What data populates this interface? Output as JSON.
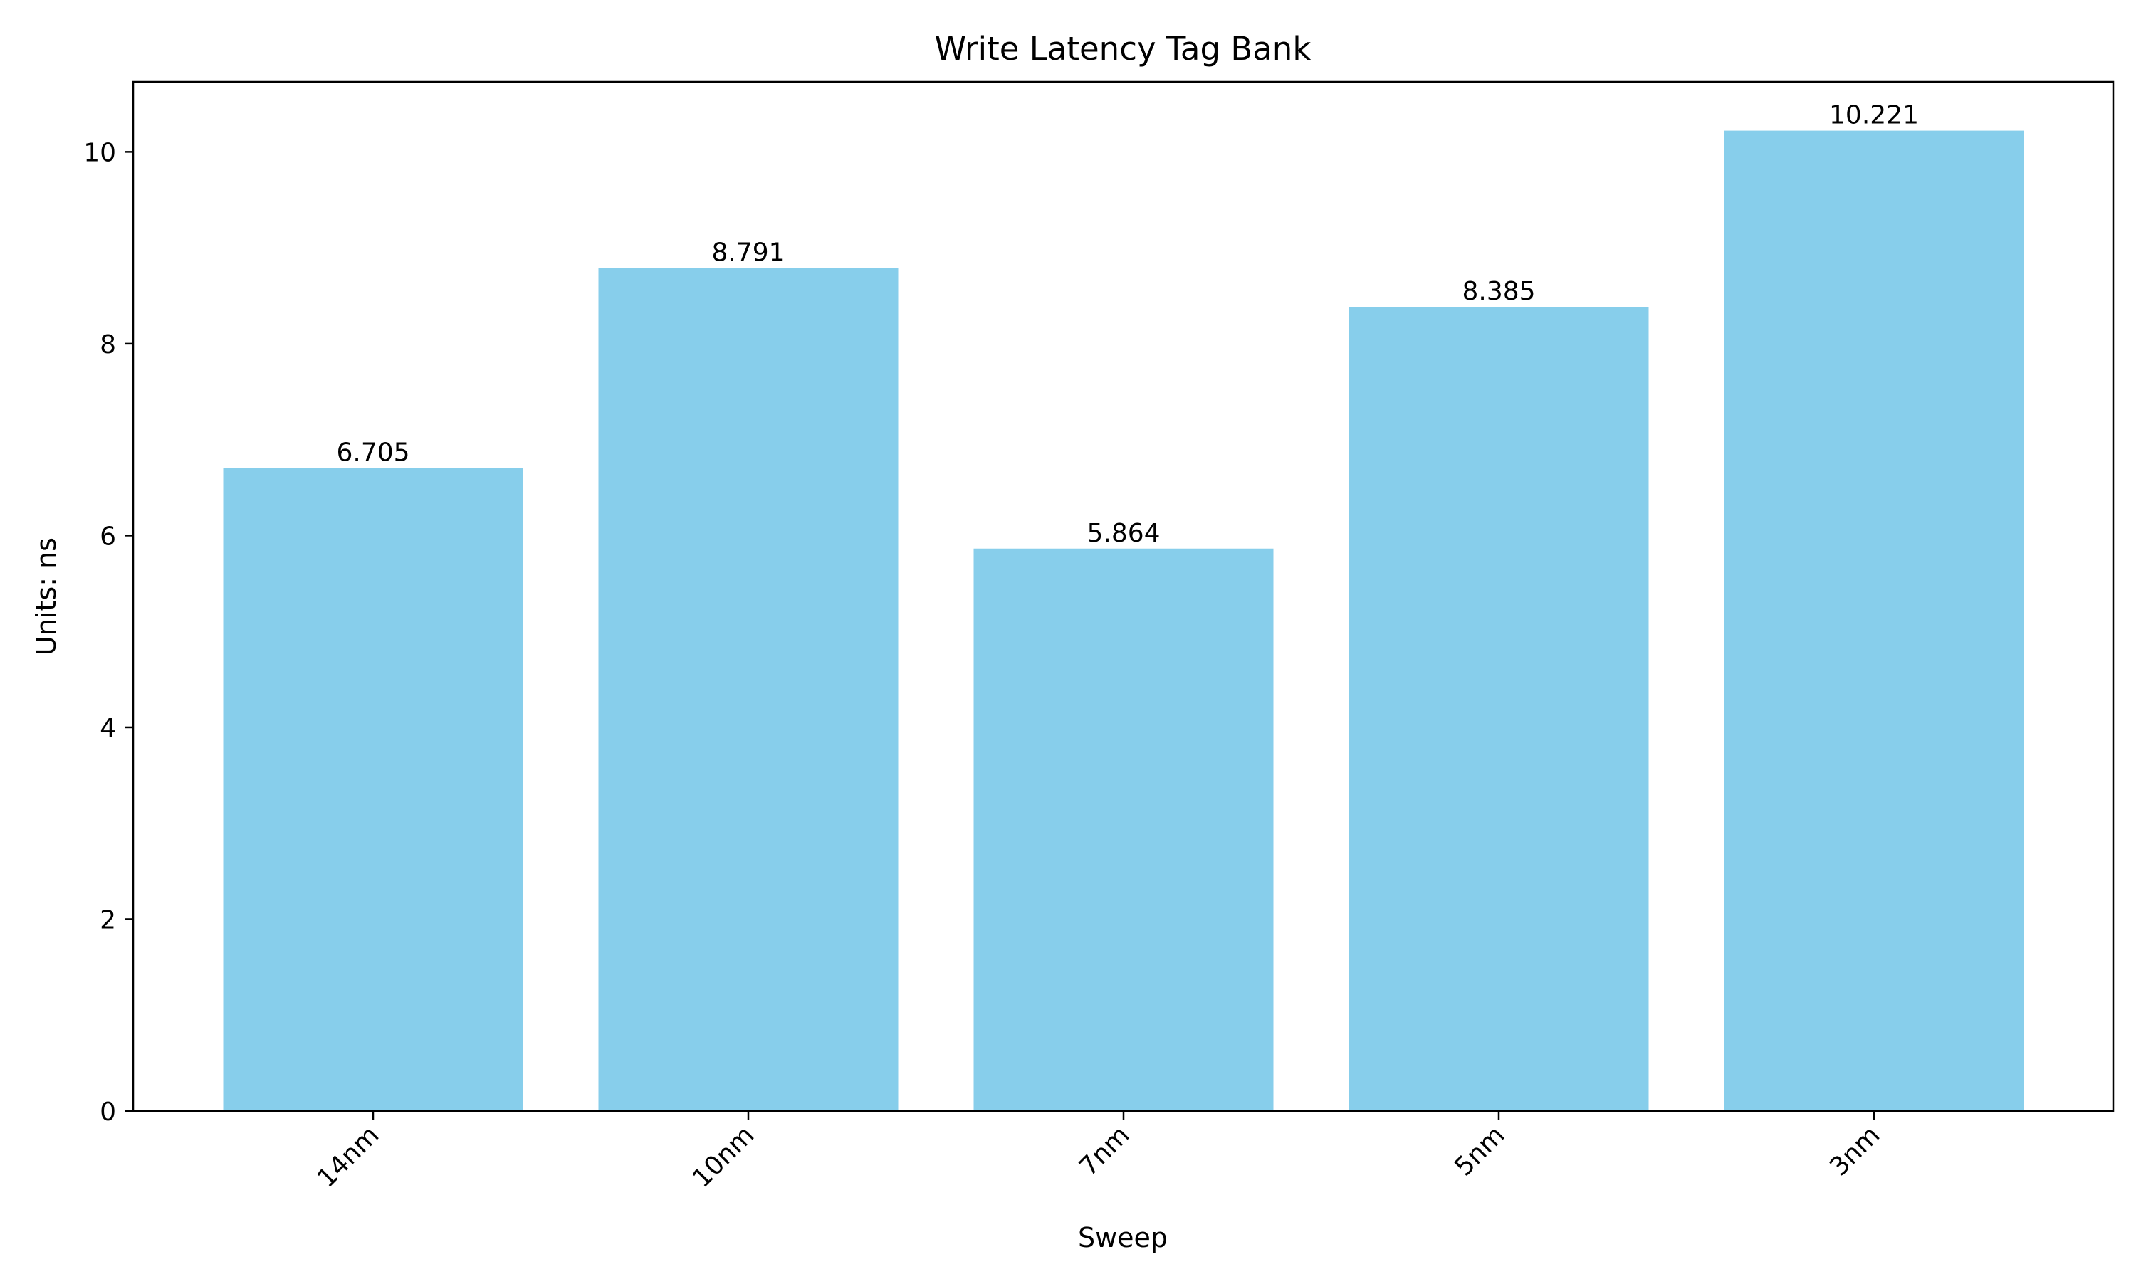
{
  "chart_data": {
    "type": "bar",
    "title": "Write Latency Tag Bank",
    "xlabel": "Sweep",
    "ylabel": "Units: ns",
    "categories": [
      "14nm",
      "10nm",
      "7nm",
      "5nm",
      "3nm"
    ],
    "series": [
      {
        "values": [
          6.705,
          8.791,
          5.864,
          8.385,
          10.221
        ]
      }
    ],
    "data_labels": [
      "6.705",
      "8.791",
      "5.864",
      "8.385",
      "10.221"
    ],
    "yticks": [
      0,
      2,
      4,
      6,
      8,
      10
    ],
    "ytick_labels": [
      "0",
      "2",
      "4",
      "6",
      "8",
      "10"
    ],
    "ylim": [
      0,
      10.73
    ],
    "grid": false,
    "legend": "none",
    "bar_color": "#87CEEB",
    "axis_color": "#000000"
  }
}
